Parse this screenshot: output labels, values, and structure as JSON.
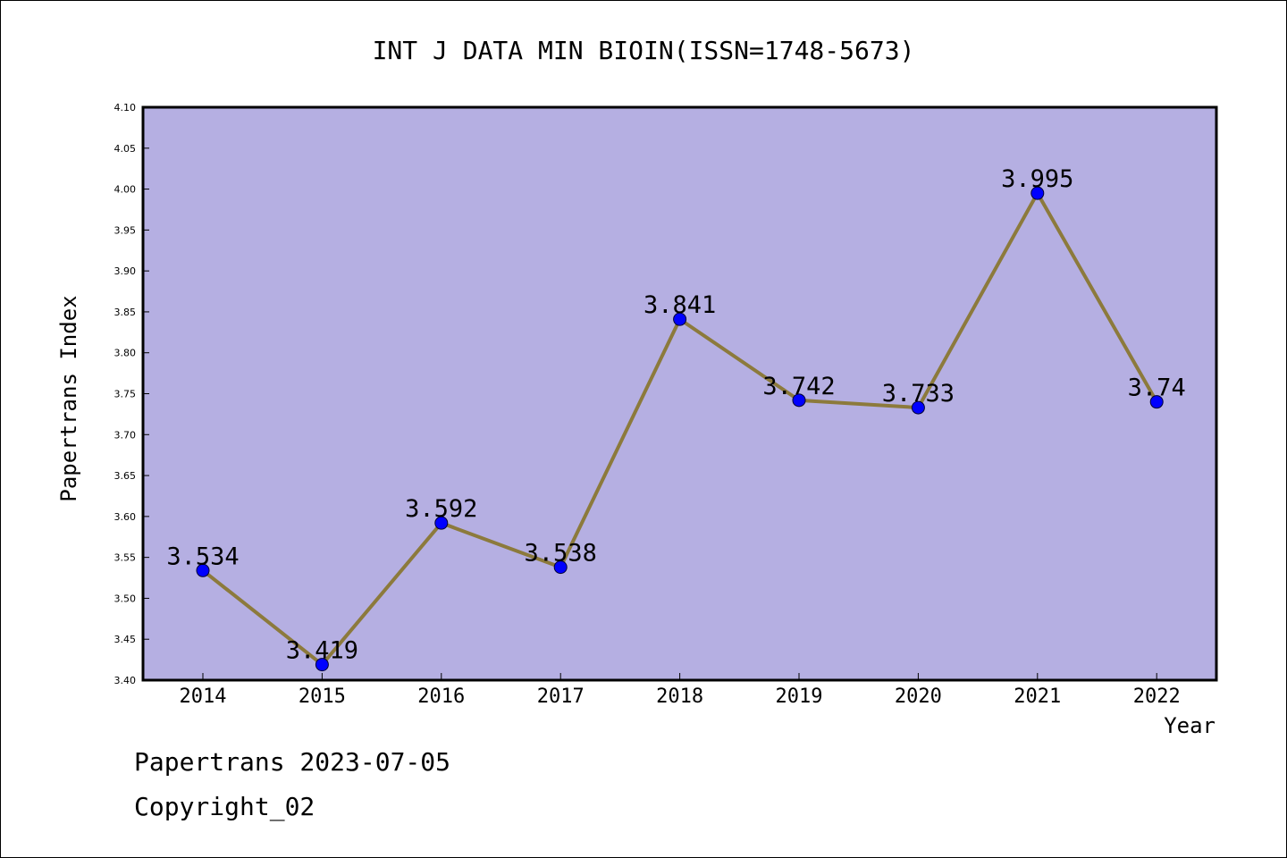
{
  "footer": {
    "source": "Papertrans 2023-07-05",
    "copyright": "Copyright_02"
  },
  "chart_data": {
    "type": "line",
    "title": "INT J DATA MIN BIOIN(ISSN=1748-5673)",
    "xlabel": "Year",
    "ylabel": "Papertrans Index",
    "categories": [
      "2014",
      "2015",
      "2016",
      "2017",
      "2018",
      "2019",
      "2020",
      "2021",
      "2022"
    ],
    "values": [
      3.534,
      3.419,
      3.592,
      3.538,
      3.841,
      3.742,
      3.733,
      3.995,
      3.74
    ],
    "data_labels": [
      "3.534",
      "3.419",
      "3.592",
      "3.538",
      "3.841",
      "3.742",
      "3.733",
      "3.995",
      "3.74"
    ],
    "ylim": [
      3.4,
      4.1
    ],
    "yticks": [
      "3.40",
      "3.45",
      "3.50",
      "3.55",
      "3.60",
      "3.65",
      "3.70",
      "3.75",
      "3.80",
      "3.85",
      "3.90",
      "3.95",
      "4.00",
      "4.05",
      "4.10"
    ],
    "grid": false,
    "colors": {
      "plot_background": "#b5afe2",
      "line": "#8c7a3c",
      "marker": "#0000ff"
    }
  }
}
